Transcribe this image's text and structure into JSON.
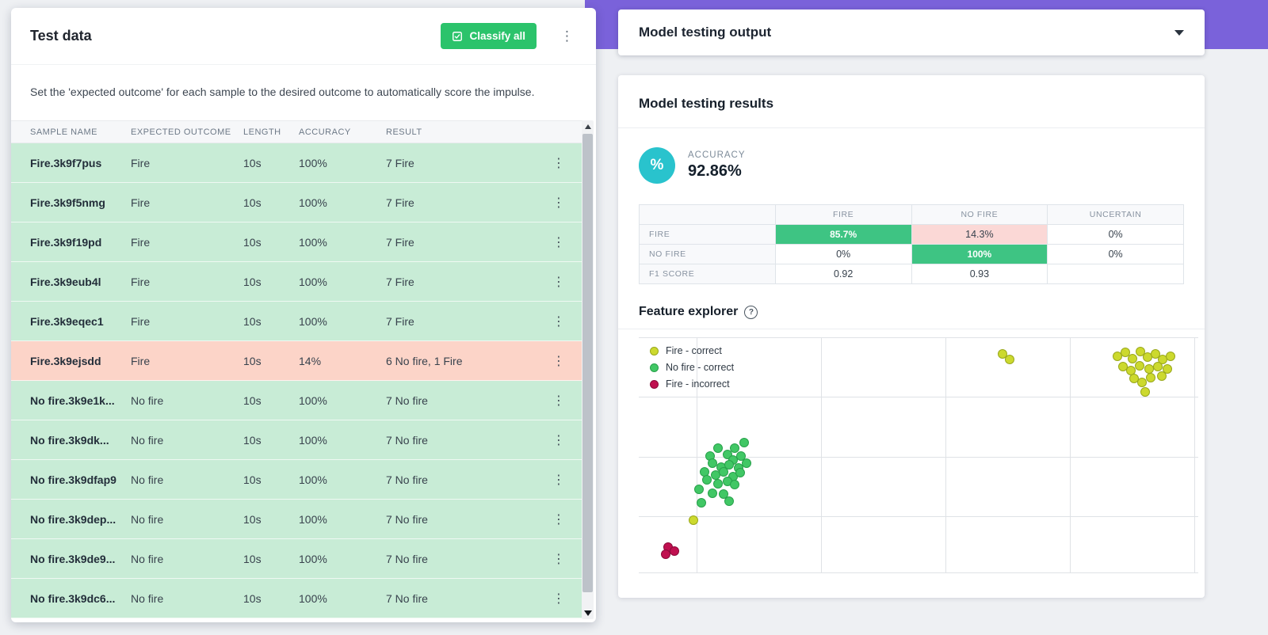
{
  "colors": {
    "accent_purple": "#7a62da",
    "classify_button_green": "#2bc36b",
    "row_correct_bg": "#c8ecd6",
    "row_incorrect_bg": "#fcd4c8",
    "matrix_good_bg": "#3ec483",
    "matrix_bad_bg": "#fbd8d6",
    "accuracy_circle_teal": "#29c3cd"
  },
  "icons": {
    "percent": "%",
    "kebab_menu": "⋮",
    "help": "?"
  },
  "test_data": {
    "title": "Test data",
    "classify_all_label": "Classify all",
    "description": "Set the 'expected outcome' for each sample to the desired outcome to automatically score the impulse.",
    "columns": [
      "SAMPLE NAME",
      "EXPECTED OUTCOME",
      "LENGTH",
      "ACCURACY",
      "RESULT"
    ],
    "rows": [
      {
        "name": "Fire.3k9f7pus",
        "expected": "Fire",
        "length": "10s",
        "accuracy": "100%",
        "result": "7 Fire",
        "status": "correct"
      },
      {
        "name": "Fire.3k9f5nmg",
        "expected": "Fire",
        "length": "10s",
        "accuracy": "100%",
        "result": "7 Fire",
        "status": "correct"
      },
      {
        "name": "Fire.3k9f19pd",
        "expected": "Fire",
        "length": "10s",
        "accuracy": "100%",
        "result": "7 Fire",
        "status": "correct"
      },
      {
        "name": "Fire.3k9eub4l",
        "expected": "Fire",
        "length": "10s",
        "accuracy": "100%",
        "result": "7 Fire",
        "status": "correct"
      },
      {
        "name": "Fire.3k9eqec1",
        "expected": "Fire",
        "length": "10s",
        "accuracy": "100%",
        "result": "7 Fire",
        "status": "correct"
      },
      {
        "name": "Fire.3k9ejsdd",
        "expected": "Fire",
        "length": "10s",
        "accuracy": "14%",
        "result": "6 No fire, 1 Fire",
        "status": "incorrect"
      },
      {
        "name": "No fire.3k9e1k...",
        "expected": "No fire",
        "length": "10s",
        "accuracy": "100%",
        "result": "7 No fire",
        "status": "correct"
      },
      {
        "name": "No fire.3k9dk...",
        "expected": "No fire",
        "length": "10s",
        "accuracy": "100%",
        "result": "7 No fire",
        "status": "correct"
      },
      {
        "name": "No fire.3k9dfap9",
        "expected": "No fire",
        "length": "10s",
        "accuracy": "100%",
        "result": "7 No fire",
        "status": "correct"
      },
      {
        "name": "No fire.3k9dep...",
        "expected": "No fire",
        "length": "10s",
        "accuracy": "100%",
        "result": "7 No fire",
        "status": "correct"
      },
      {
        "name": "No fire.3k9de9...",
        "expected": "No fire",
        "length": "10s",
        "accuracy": "100%",
        "result": "7 No fire",
        "status": "correct"
      },
      {
        "name": "No fire.3k9dc6...",
        "expected": "No fire",
        "length": "10s",
        "accuracy": "100%",
        "result": "7 No fire",
        "status": "correct"
      }
    ]
  },
  "model_output": {
    "title": "Model testing output",
    "results_title": "Model testing results",
    "accuracy_label": "ACCURACY",
    "accuracy_value": "92.86%",
    "confusion_matrix": {
      "columns": [
        "FIRE",
        "NO FIRE",
        "UNCERTAIN"
      ],
      "rows": [
        {
          "label": "FIRE",
          "cells": [
            {
              "text": "85.7%",
              "type": "good"
            },
            {
              "text": "14.3%",
              "type": "bad"
            },
            {
              "text": "0%",
              "type": "plain"
            }
          ]
        },
        {
          "label": "NO FIRE",
          "cells": [
            {
              "text": "0%",
              "type": "plain"
            },
            {
              "text": "100%",
              "type": "good"
            },
            {
              "text": "0%",
              "type": "plain"
            }
          ]
        },
        {
          "label": "F1 SCORE",
          "cells": [
            {
              "text": "0.92",
              "type": "plain"
            },
            {
              "text": "0.93",
              "type": "plain"
            },
            {
              "text": "",
              "type": "plain"
            }
          ]
        }
      ]
    },
    "feature_explorer_title": "Feature explorer"
  },
  "chart_data": {
    "type": "scatter",
    "title": "Feature explorer",
    "xlabel": "",
    "ylabel": "",
    "tick_labels_visible": false,
    "legend_position": "top-left",
    "grid": {
      "vertical_pct": [
        10.3,
        32.6,
        54.8,
        77.0,
        99.3
      ],
      "horizontal_pct": [
        0,
        25.3,
        50.7,
        76.0,
        99.7
      ]
    },
    "units": "percent of plot area, origin top-left",
    "series": [
      {
        "name": "Fire - correct",
        "fill": "#ccd92e",
        "stroke": "#99a81c",
        "points": [
          [
            65.0,
            7.0
          ],
          [
            66.3,
            9.5
          ],
          [
            85.5,
            8.0
          ],
          [
            87.0,
            6.5
          ],
          [
            88.3,
            9.0
          ],
          [
            89.7,
            6.0
          ],
          [
            91.0,
            8.5
          ],
          [
            92.3,
            7.0
          ],
          [
            93.6,
            9.5
          ],
          [
            95.0,
            8.0
          ],
          [
            86.5,
            12.5
          ],
          [
            88.0,
            14.0
          ],
          [
            89.5,
            12.0
          ],
          [
            91.2,
            13.5
          ],
          [
            92.8,
            12.5
          ],
          [
            94.5,
            13.5
          ],
          [
            88.5,
            17.5
          ],
          [
            90.0,
            19.0
          ],
          [
            91.5,
            17.0
          ],
          [
            93.5,
            16.5
          ],
          [
            90.5,
            23.0
          ],
          [
            9.8,
            77.5
          ]
        ]
      },
      {
        "name": "No fire - correct",
        "fill": "#41c765",
        "stroke": "#28a14b",
        "points": [
          [
            18.8,
            44.5
          ],
          [
            17.2,
            47.0
          ],
          [
            15.8,
            49.5
          ],
          [
            14.2,
            47.0
          ],
          [
            12.8,
            50.5
          ],
          [
            16.8,
            52.0
          ],
          [
            18.3,
            50.5
          ],
          [
            13.2,
            53.5
          ],
          [
            14.8,
            55.0
          ],
          [
            16.2,
            54.0
          ],
          [
            17.8,
            55.5
          ],
          [
            19.2,
            53.5
          ],
          [
            11.8,
            57.0
          ],
          [
            13.8,
            58.5
          ],
          [
            15.2,
            57.0
          ],
          [
            16.8,
            59.0
          ],
          [
            18.2,
            57.5
          ],
          [
            12.2,
            60.5
          ],
          [
            14.2,
            62.0
          ],
          [
            15.8,
            61.0
          ],
          [
            17.2,
            62.5
          ],
          [
            10.8,
            64.5
          ],
          [
            13.2,
            66.0
          ],
          [
            15.2,
            66.5
          ],
          [
            11.2,
            70.0
          ],
          [
            16.2,
            69.5
          ]
        ]
      },
      {
        "name": "Fire - incorrect",
        "fill": "#c01050",
        "stroke": "#8c0a3a",
        "points": [
          [
            5.2,
            89.0
          ],
          [
            6.4,
            90.5
          ],
          [
            4.8,
            92.0
          ]
        ]
      }
    ]
  }
}
